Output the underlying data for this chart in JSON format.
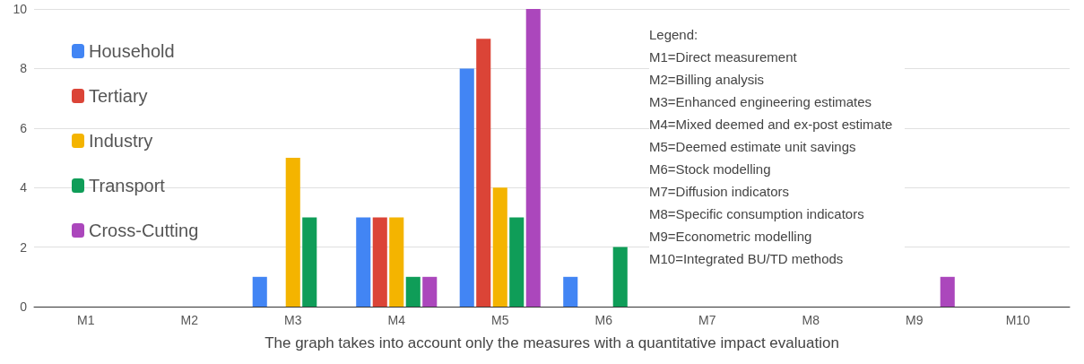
{
  "chart_data": {
    "type": "bar",
    "xlabel": "The graph takes into account only the measures with a quantitative impact evaluation",
    "categories": [
      "M1",
      "M2",
      "M3",
      "M4",
      "M5",
      "M6",
      "M7",
      "M8",
      "M9",
      "M10"
    ],
    "series": [
      {
        "name": "Household",
        "color": "#4285f4",
        "values": [
          0,
          0,
          1,
          3,
          8,
          1,
          0,
          0,
          0,
          0
        ]
      },
      {
        "name": "Tertiary",
        "color": "#db4437",
        "values": [
          0,
          0,
          0,
          3,
          9,
          0,
          0,
          0,
          0,
          0
        ]
      },
      {
        "name": "Industry",
        "color": "#f4b400",
        "values": [
          0,
          0,
          5,
          3,
          4,
          0,
          0,
          0,
          0,
          0
        ]
      },
      {
        "name": "Transport",
        "color": "#0f9d58",
        "values": [
          0,
          0,
          3,
          1,
          3,
          2,
          0,
          0,
          0,
          0
        ]
      },
      {
        "name": "Cross-Cutting",
        "color": "#ab47bc",
        "values": [
          0,
          0,
          0,
          1,
          10,
          0,
          0,
          0,
          1,
          0
        ]
      }
    ],
    "ylim": [
      0,
      10
    ],
    "yticks": [
      0,
      2,
      4,
      6,
      8,
      10
    ],
    "grid": "y",
    "legend": "top left",
    "annotations": [
      "Legend:",
      "M1=Direct measurement",
      "M2=Billing analysis",
      "M3=Enhanced engineering estimates",
      "M4=Mixed deemed and ex-post estimate",
      "M5=Deemed estimate unit savings",
      "M6=Stock modelling",
      "M7=Diffusion indicators",
      "M8=Specific consumption indicators",
      "M9=Econometric modelling",
      "M10=Integrated BU/TD methods"
    ]
  }
}
